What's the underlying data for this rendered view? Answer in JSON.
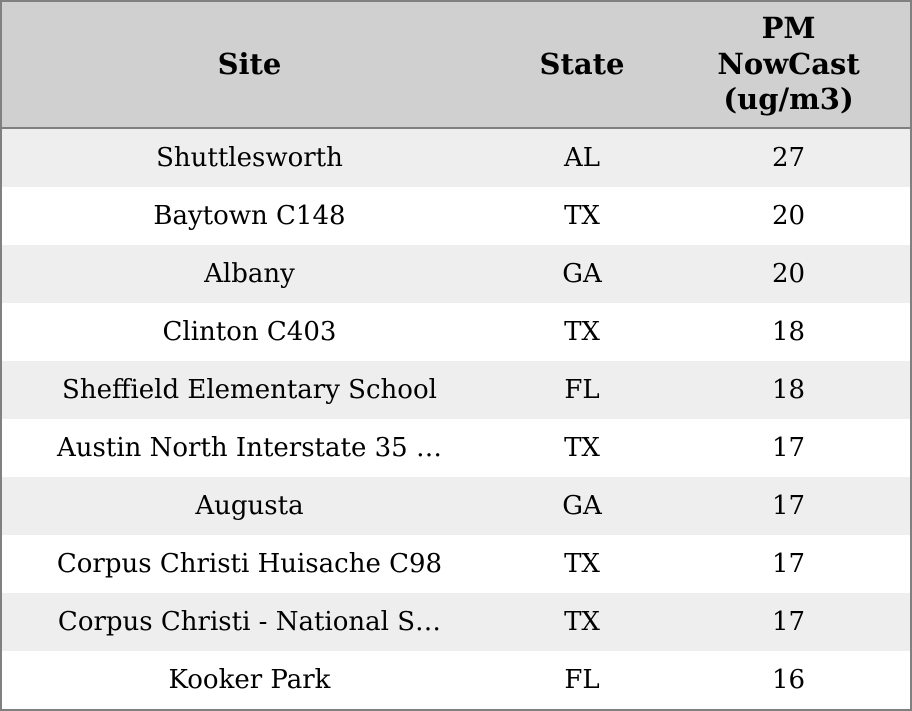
{
  "chart_data": {
    "type": "table",
    "title": "",
    "columns": [
      "Site",
      "State",
      "PM NowCast (ug/m3)"
    ],
    "rows": [
      [
        "Shuttlesworth",
        "AL",
        27
      ],
      [
        "Baytown C148",
        "TX",
        20
      ],
      [
        "Albany",
        "GA",
        20
      ],
      [
        "Clinton C403",
        "TX",
        18
      ],
      [
        "Sheffield Elementary School",
        "FL",
        18
      ],
      [
        "Austin North Interstate 35 …",
        "TX",
        17
      ],
      [
        "Augusta",
        "GA",
        17
      ],
      [
        "Corpus Christi Huisache C98",
        "TX",
        17
      ],
      [
        "Corpus Christi - National S…",
        "TX",
        17
      ],
      [
        "Kooker Park",
        "FL",
        16
      ]
    ],
    "layout": {
      "striped": true,
      "stripe_rows": "odd",
      "alignment": "center"
    }
  },
  "header": {
    "site": "Site",
    "state": "State",
    "pm": "PM\nNowCast\n(ug/m3)"
  },
  "colors": {
    "header_bg": "#d0d0d0",
    "row_stripe_bg": "#eeeeee",
    "row_bg": "#ffffff",
    "border": "#808080",
    "text": "#000000"
  }
}
